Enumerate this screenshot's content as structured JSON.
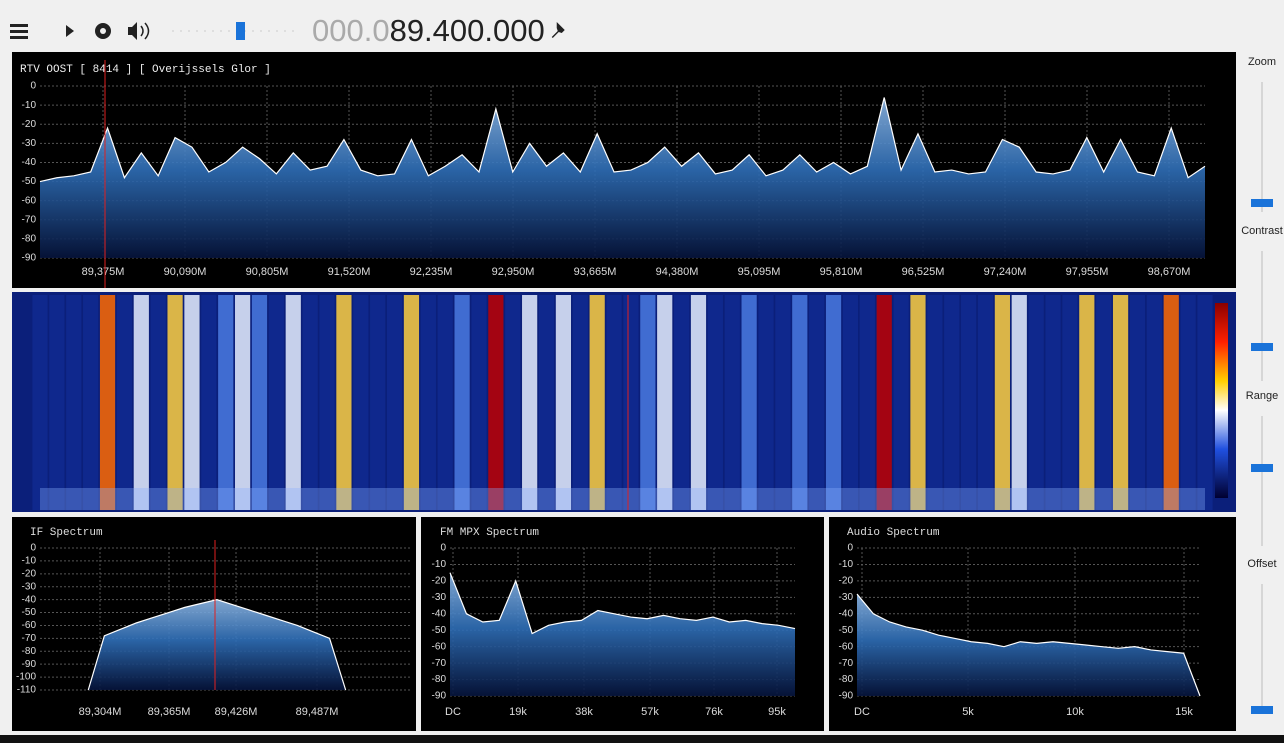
{
  "toolbar": {
    "frequency_prefix": "000.0",
    "frequency": "89.400.000"
  },
  "main_spectrum": {
    "header": "RTV OOST [ 8414 ] [ Overijssels Glor ]",
    "ylim": [
      -90,
      0
    ],
    "yticks": [
      0,
      -10,
      -20,
      -30,
      -40,
      -50,
      -60,
      -70,
      -80,
      -90
    ],
    "xticks": [
      "89,375M",
      "90,090M",
      "90,805M",
      "91,520M",
      "92,235M",
      "92,950M",
      "93,665M",
      "94,380M",
      "95,095M",
      "95,810M",
      "96,525M",
      "97,240M",
      "97,955M",
      "98,670M"
    ],
    "values": [
      -50,
      -48,
      -47,
      -45,
      -22,
      -48,
      -35,
      -47,
      -27,
      -32,
      -45,
      -40,
      -32,
      -38,
      -46,
      -35,
      -44,
      -42,
      -28,
      -44,
      -47,
      -46,
      -28,
      -47,
      -42,
      -36,
      -45,
      -12,
      -45,
      -30,
      -42,
      -35,
      -45,
      -25,
      -45,
      -44,
      -40,
      -32,
      -42,
      -35,
      -46,
      -44,
      -36,
      -47,
      -44,
      -36,
      -45,
      -40,
      -46,
      -42,
      -6,
      -44,
      -25,
      -45,
      -44,
      -46,
      -45,
      -28,
      -32,
      -45,
      -46,
      -44,
      -27,
      -45,
      -28,
      -45,
      -47,
      -22,
      -48,
      -42
    ]
  },
  "if_spectrum": {
    "title": "IF Spectrum",
    "ylim": [
      -110,
      0
    ],
    "yticks": [
      0,
      -10,
      -20,
      -30,
      -40,
      -50,
      -60,
      -70,
      -80,
      -90,
      -100,
      -110
    ],
    "xticks": [
      "89,304M",
      "89,365M",
      "89,426M",
      "89,487M"
    ],
    "values": [
      null,
      null,
      null,
      -110,
      -68,
      -63,
      -58,
      -54,
      -50,
      -46,
      -43,
      -40,
      -44,
      -48,
      -52,
      -56,
      -60,
      -65,
      -70,
      -110,
      null,
      null,
      null,
      null
    ]
  },
  "fm_mpx_spectrum": {
    "title": "FM MPX Spectrum",
    "ylim": [
      -90,
      0
    ],
    "yticks": [
      0,
      -10,
      -20,
      -30,
      -40,
      -50,
      -60,
      -70,
      -80,
      -90
    ],
    "xticks": [
      "DC",
      "19k",
      "38k",
      "57k",
      "76k",
      "95k"
    ],
    "values": [
      -15,
      -40,
      -45,
      -44,
      -20,
      -52,
      -47,
      -45,
      -44,
      -38,
      -40,
      -42,
      -43,
      -41,
      -43,
      -44,
      -42,
      -45,
      -44,
      -46,
      -47,
      -49
    ]
  },
  "audio_spectrum": {
    "title": "Audio Spectrum",
    "ylim": [
      -90,
      0
    ],
    "yticks": [
      0,
      -10,
      -20,
      -30,
      -40,
      -50,
      -60,
      -70,
      -80,
      -90
    ],
    "xticks": [
      "DC",
      "5k",
      "10k",
      "15k"
    ],
    "values": [
      -28,
      -40,
      -45,
      -48,
      -50,
      -53,
      -55,
      -57,
      -58,
      -60,
      -57,
      -58,
      -57,
      -58,
      -59,
      -60,
      -61,
      -60,
      -62,
      -63,
      -64,
      -90
    ]
  },
  "controls": [
    "Zoom",
    "Contrast",
    "Range",
    "Offset"
  ]
}
